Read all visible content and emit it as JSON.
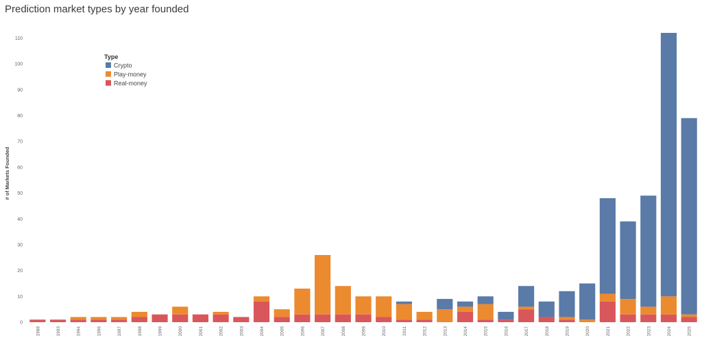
{
  "chart_data": {
    "type": "bar",
    "stacked": true,
    "title": "Prediction market types by year founded",
    "ylabel": "# of Markets Founded",
    "xlabel": "",
    "ylim": [
      0,
      113
    ],
    "yticks": [
      0,
      10,
      20,
      30,
      40,
      50,
      60,
      70,
      80,
      90,
      100,
      110
    ],
    "grid": false,
    "legend": {
      "title": "Type",
      "placement": "top-left"
    },
    "categories": [
      "1988",
      "1993",
      "1994",
      "1996",
      "1997",
      "1998",
      "1999",
      "2000",
      "2001",
      "2002",
      "2003",
      "2004",
      "2005",
      "2006",
      "2007",
      "2008",
      "2009",
      "2010",
      "2011",
      "2012",
      "2013",
      "2014",
      "2015",
      "2016",
      "2017",
      "2018",
      "2019",
      "2020",
      "2021",
      "2022",
      "2023",
      "2024",
      "2025"
    ],
    "series": [
      {
        "name": "Real-money",
        "color": "#d9575a",
        "values": [
          1,
          1,
          1,
          1,
          1,
          2,
          3,
          3,
          3,
          3,
          2,
          8,
          2,
          3,
          3,
          3,
          3,
          2,
          1,
          1,
          0,
          4,
          1,
          1,
          5,
          2,
          1,
          0,
          8,
          3,
          3,
          3,
          2
        ]
      },
      {
        "name": "Play-money",
        "color": "#ec8a2f",
        "values": [
          0,
          0,
          1,
          1,
          1,
          2,
          0,
          3,
          0,
          1,
          0,
          2,
          3,
          10,
          23,
          11,
          7,
          8,
          6,
          3,
          5,
          2,
          6,
          0,
          1,
          0,
          1,
          1,
          3,
          6,
          3,
          7,
          1
        ]
      },
      {
        "name": "Crypto",
        "color": "#5a7aa8",
        "values": [
          0,
          0,
          0,
          0,
          0,
          0,
          0,
          0,
          0,
          0,
          0,
          0,
          0,
          0,
          0,
          0,
          0,
          0,
          1,
          0,
          4,
          2,
          3,
          3,
          8,
          6,
          10,
          14,
          37,
          30,
          43,
          102,
          76
        ]
      }
    ]
  }
}
